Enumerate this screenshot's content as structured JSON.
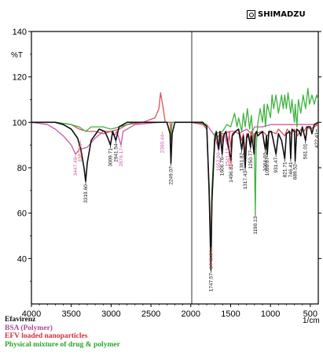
{
  "brand": {
    "name": "SHIMADZU",
    "logo_icon": "shimadzu-logo-icon"
  },
  "chart_data": {
    "type": "line",
    "title": "",
    "xlabel": "1/cm",
    "ylabel": "%T",
    "xlim": [
      4000,
      400
    ],
    "ylim": [
      20,
      140
    ],
    "x_ticks": [
      4000,
      3500,
      3000,
      2500,
      2000,
      1500,
      1000,
      500
    ],
    "y_ticks": [
      40,
      60,
      80,
      100,
      120,
      140
    ],
    "series": [
      {
        "name": "Efavirenz",
        "color": "#111111",
        "points": [
          [
            4000,
            100
          ],
          [
            3700,
            100
          ],
          [
            3600,
            99
          ],
          [
            3500,
            97
          ],
          [
            3420,
            93
          ],
          [
            3380,
            88
          ],
          [
            3340,
            80
          ],
          [
            3319,
            74
          ],
          [
            3300,
            82
          ],
          [
            3250,
            92
          ],
          [
            3150,
            97
          ],
          [
            3080,
            96
          ],
          [
            3040,
            93
          ],
          [
            3009,
            90
          ],
          [
            2980,
            96
          ],
          [
            2941,
            92
          ],
          [
            2900,
            98
          ],
          [
            2800,
            100
          ],
          [
            2400,
            100
          ],
          [
            2300,
            100
          ],
          [
            2260,
            95
          ],
          [
            2249,
            82
          ],
          [
            2235,
            95
          ],
          [
            2200,
            100
          ],
          [
            1850,
            100
          ],
          [
            1800,
            98
          ],
          [
            1770,
            70
          ],
          [
            1747,
            35
          ],
          [
            1735,
            65
          ],
          [
            1700,
            92
          ],
          [
            1680,
            96
          ],
          [
            1649,
            88
          ],
          [
            1635,
            96
          ],
          [
            1606,
            86
          ],
          [
            1590,
            94
          ],
          [
            1560,
            96
          ],
          [
            1496,
            83
          ],
          [
            1480,
            94
          ],
          [
            1440,
            96
          ],
          [
            1400,
            97
          ],
          [
            1361,
            88
          ],
          [
            1340,
            94
          ],
          [
            1317,
            80
          ],
          [
            1300,
            93
          ],
          [
            1280,
            95
          ],
          [
            1250,
            89
          ],
          [
            1240,
            94
          ],
          [
            1220,
            90
          ],
          [
            1205,
            86
          ],
          [
            1190,
            95
          ],
          [
            1175,
            96
          ],
          [
            1160,
            94
          ],
          [
            1100,
            96
          ],
          [
            1080,
            91
          ],
          [
            1064,
            88
          ],
          [
            1050,
            94
          ],
          [
            1040,
            86
          ],
          [
            1020,
            96
          ],
          [
            990,
            96
          ],
          [
            970,
            93
          ],
          [
            931,
            86
          ],
          [
            900,
            95
          ],
          [
            861,
            92
          ],
          [
            821,
            84
          ],
          [
            800,
            95
          ],
          [
            760,
            96
          ],
          [
            746,
            84
          ],
          [
            730,
            97
          ],
          [
            700,
            96
          ],
          [
            690,
            83
          ],
          [
            670,
            97
          ],
          [
            640,
            96
          ],
          [
            620,
            94
          ],
          [
            600,
            98
          ],
          [
            560,
            92
          ],
          [
            540,
            98
          ],
          [
            500,
            98
          ],
          [
            480,
            95
          ],
          [
            450,
            99
          ],
          [
            400,
            100
          ]
        ]
      },
      {
        "name": "BSA (Polymer)",
        "color": "#cc5aa8",
        "points": [
          [
            4000,
            100
          ],
          [
            3800,
            99
          ],
          [
            3700,
            97
          ],
          [
            3600,
            94
          ],
          [
            3500,
            90
          ],
          [
            3447,
            86
          ],
          [
            3400,
            88
          ],
          [
            3300,
            89
          ],
          [
            3200,
            93
          ],
          [
            3100,
            96
          ],
          [
            3000,
            96
          ],
          [
            2960,
            94
          ],
          [
            2930,
            96
          ],
          [
            2876,
            90
          ],
          [
            2850,
            96
          ],
          [
            2700,
            99
          ],
          [
            2400,
            100
          ],
          [
            2200,
            100
          ],
          [
            2000,
            100
          ],
          [
            1800,
            99
          ],
          [
            1700,
            94
          ],
          [
            1653,
            88
          ],
          [
            1620,
            95
          ],
          [
            1580,
            95
          ],
          [
            1541,
            90
          ],
          [
            1510,
            96
          ],
          [
            1450,
            96
          ],
          [
            1400,
            95
          ],
          [
            1300,
            97
          ],
          [
            1240,
            95
          ],
          [
            1200,
            98
          ],
          [
            1100,
            98
          ],
          [
            1000,
            99
          ],
          [
            900,
            99
          ],
          [
            800,
            99
          ],
          [
            700,
            99
          ],
          [
            600,
            99
          ],
          [
            400,
            99
          ]
        ]
      },
      {
        "name": "EFV loaded nanoparticles",
        "color": "#e0505a",
        "points": [
          [
            4000,
            100
          ],
          [
            3700,
            100
          ],
          [
            3500,
            99
          ],
          [
            3400,
            97
          ],
          [
            3300,
            96
          ],
          [
            3200,
            96
          ],
          [
            3100,
            95
          ],
          [
            3000,
            96
          ],
          [
            2900,
            97
          ],
          [
            2800,
            99
          ],
          [
            2600,
            100
          ],
          [
            2450,
            102
          ],
          [
            2400,
            106
          ],
          [
            2380,
            113
          ],
          [
            2355,
            108
          ],
          [
            2320,
            100
          ],
          [
            2260,
            100
          ],
          [
            2249,
            92
          ],
          [
            2240,
            100
          ],
          [
            2000,
            100
          ],
          [
            1850,
            99
          ],
          [
            1800,
            97
          ],
          [
            1770,
            72
          ],
          [
            1745,
            45
          ],
          [
            1730,
            70
          ],
          [
            1700,
            92
          ],
          [
            1650,
            94
          ],
          [
            1620,
            96
          ],
          [
            1596,
            90
          ],
          [
            1580,
            95
          ],
          [
            1520,
            96
          ],
          [
            1500,
            89
          ],
          [
            1480,
            95
          ],
          [
            1400,
            97
          ],
          [
            1360,
            92
          ],
          [
            1340,
            95
          ],
          [
            1317,
            86
          ],
          [
            1300,
            95
          ],
          [
            1260,
            92
          ],
          [
            1240,
            96
          ],
          [
            1210,
            91
          ],
          [
            1200,
            95
          ],
          [
            1100,
            96
          ],
          [
            1040,
            94
          ],
          [
            1000,
            96
          ],
          [
            930,
            95
          ],
          [
            900,
            97
          ],
          [
            820,
            94
          ],
          [
            790,
            97
          ],
          [
            740,
            95
          ],
          [
            700,
            97
          ],
          [
            660,
            94
          ],
          [
            620,
            97
          ],
          [
            580,
            96
          ],
          [
            550,
            98
          ],
          [
            500,
            97
          ],
          [
            400,
            99
          ]
        ]
      },
      {
        "name": "Physical mixture of drug & polymer",
        "color": "#3fb23f",
        "points": [
          [
            4000,
            100
          ],
          [
            3700,
            100
          ],
          [
            3500,
            99
          ],
          [
            3400,
            98
          ],
          [
            3319,
            96
          ],
          [
            3250,
            98
          ],
          [
            3100,
            98
          ],
          [
            3000,
            97
          ],
          [
            2900,
            98
          ],
          [
            2700,
            100
          ],
          [
            2400,
            100
          ],
          [
            2300,
            100
          ],
          [
            2249,
            94
          ],
          [
            2235,
            100
          ],
          [
            1900,
            100
          ],
          [
            1800,
            99
          ],
          [
            1770,
            68
          ],
          [
            1747,
            41
          ],
          [
            1735,
            70
          ],
          [
            1700,
            95
          ],
          [
            1600,
            96
          ],
          [
            1550,
            99
          ],
          [
            1500,
            98
          ],
          [
            1450,
            104
          ],
          [
            1420,
            98
          ],
          [
            1400,
            102
          ],
          [
            1361,
            96
          ],
          [
            1340,
            104
          ],
          [
            1317,
            98
          ],
          [
            1290,
            106
          ],
          [
            1262,
            97
          ],
          [
            1240,
            103
          ],
          [
            1225,
            96
          ],
          [
            1205,
            92
          ],
          [
            1190,
            60
          ],
          [
            1180,
            88
          ],
          [
            1160,
            99
          ],
          [
            1130,
            106
          ],
          [
            1100,
            100
          ],
          [
            1080,
            108
          ],
          [
            1064,
            98
          ],
          [
            1040,
            108
          ],
          [
            1000,
            102
          ],
          [
            980,
            112
          ],
          [
            960,
            106
          ],
          [
            931,
            112
          ],
          [
            900,
            104
          ],
          [
            861,
            112
          ],
          [
            840,
            106
          ],
          [
            821,
            112
          ],
          [
            800,
            106
          ],
          [
            780,
            113
          ],
          [
            746,
            104
          ],
          [
            730,
            110
          ],
          [
            700,
            100
          ],
          [
            690,
            108
          ],
          [
            668,
            98
          ],
          [
            650,
            110
          ],
          [
            620,
            104
          ],
          [
            590,
            112
          ],
          [
            560,
            106
          ],
          [
            530,
            115
          ],
          [
            510,
            108
          ],
          [
            480,
            112
          ],
          [
            450,
            108
          ],
          [
            420,
            112
          ],
          [
            400,
            110
          ]
        ]
      }
    ],
    "annotations": [
      {
        "text": "3319.60",
        "x": 3319,
        "y": 74,
        "color": "#111111"
      },
      {
        "text": "3009.71",
        "x": 3009,
        "y": 90,
        "color": "#111111"
      },
      {
        "text": "2941.54",
        "x": 2941,
        "y": 92,
        "color": "#111111"
      },
      {
        "text": "2249.07",
        "x": 2249,
        "y": 82,
        "color": "#111111"
      },
      {
        "text": "1747.57",
        "x": 1747,
        "y": 35,
        "color": "#111111"
      },
      {
        "text": "1606.76",
        "x": 1606,
        "y": 86,
        "color": "#111111"
      },
      {
        "text": "1496.81",
        "x": 1496,
        "y": 83,
        "color": "#111111"
      },
      {
        "text": "1361.82",
        "x": 1361,
        "y": 88,
        "color": "#111111"
      },
      {
        "text": "1317.43",
        "x": 1317,
        "y": 80,
        "color": "#111111"
      },
      {
        "text": "1250.77",
        "x": 1250,
        "y": 89,
        "color": "#111111"
      },
      {
        "text": "1190.13",
        "x": 1190,
        "y": 60,
        "color": "#111111"
      },
      {
        "text": "1064.00",
        "x": 1064,
        "y": 88,
        "color": "#111111"
      },
      {
        "text": "1039.67",
        "x": 1039,
        "y": 86,
        "color": "#111111"
      },
      {
        "text": "931.47",
        "x": 931,
        "y": 86,
        "color": "#111111"
      },
      {
        "text": "821.71",
        "x": 821,
        "y": 84,
        "color": "#111111"
      },
      {
        "text": "746.41",
        "x": 746,
        "y": 84,
        "color": "#111111"
      },
      {
        "text": "689.52",
        "x": 689,
        "y": 83,
        "color": "#111111"
      },
      {
        "text": "561.01",
        "x": 561,
        "y": 92,
        "color": "#111111"
      },
      {
        "text": "422.41",
        "x": 422,
        "y": 97,
        "color": "#111111"
      },
      {
        "text": "3447.49",
        "x": 3447,
        "y": 86,
        "color": "#cc5aa8"
      },
      {
        "text": "2876.17",
        "x": 2876,
        "y": 90,
        "color": "#cc5aa8"
      },
      {
        "text": "2360.44",
        "x": 2360,
        "y": 96,
        "color": "#cc5aa8"
      },
      {
        "text": "1653.00",
        "x": 1653,
        "y": 88,
        "color": "#cc5aa8"
      },
      {
        "text": "1541.12",
        "x": 1541,
        "y": 90,
        "color": "#cc5aa8"
      },
      {
        "text": "3387.00",
        "x": 3387,
        "y": 92,
        "color": "#e0505a"
      },
      {
        "text": "1745.64",
        "x": 1745,
        "y": 45,
        "color": "#e0505a"
      },
      {
        "text": "1500.72",
        "x": 1500,
        "y": 89,
        "color": "#e0505a"
      }
    ],
    "grid": false,
    "legend": "bottom-left"
  }
}
